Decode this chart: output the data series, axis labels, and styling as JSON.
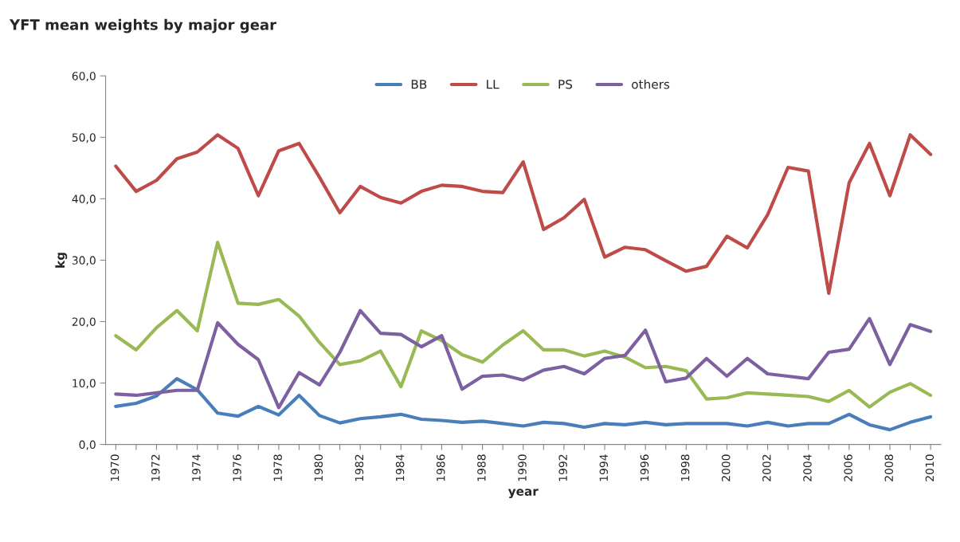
{
  "chart_data": {
    "type": "line",
    "title": "YFT mean weights by major gear",
    "xlabel": "year",
    "ylabel": "kg",
    "categories": [
      "1970",
      null,
      "1972",
      null,
      "1974",
      null,
      "1976",
      null,
      "1978",
      null,
      "1980",
      null,
      "1982",
      null,
      "1984",
      null,
      "1986",
      null,
      "1988",
      null,
      "1990",
      null,
      "1992",
      null,
      "1994",
      null,
      "1996",
      null,
      "1998",
      null,
      "2000",
      null,
      "2002",
      null,
      "2004",
      null,
      "2006",
      null,
      "2008",
      null,
      "2010"
    ],
    "series": [
      {
        "name": "BB",
        "color": "#4a7ebb",
        "values": [
          6.2,
          6.7,
          7.9,
          10.7,
          8.9,
          5.1,
          4.6,
          6.2,
          4.8,
          8.0,
          4.7,
          3.5,
          4.2,
          4.5,
          4.9,
          4.1,
          3.9,
          3.6,
          3.8,
          3.4,
          3.0,
          3.6,
          3.4,
          2.8,
          3.4,
          3.2,
          3.6,
          3.2,
          3.4,
          3.4,
          3.4,
          3.0,
          3.6,
          3.0,
          3.4,
          3.4,
          4.9,
          3.2,
          2.4,
          3.6,
          4.5
        ]
      },
      {
        "name": "LL",
        "color": "#be4b48",
        "values": [
          45.3,
          41.2,
          43.0,
          46.5,
          47.6,
          50.4,
          48.2,
          40.5,
          47.8,
          49.0,
          43.5,
          37.7,
          42.0,
          40.2,
          39.3,
          41.2,
          42.2,
          42.0,
          41.2,
          41.0,
          46.0,
          35.0,
          36.9,
          39.9,
          30.5,
          32.1,
          31.7,
          29.9,
          28.2,
          29.0,
          33.9,
          32.0,
          37.4,
          45.1,
          44.5,
          24.6,
          42.6,
          49.0,
          40.5,
          50.4,
          47.2
        ]
      },
      {
        "name": "PS",
        "color": "#98b954",
        "values": [
          17.7,
          15.4,
          19.0,
          21.8,
          18.5,
          32.9,
          23.0,
          22.8,
          23.6,
          20.9,
          16.6,
          13.0,
          13.6,
          15.2,
          9.4,
          18.5,
          16.9,
          14.6,
          13.4,
          16.2,
          18.5,
          15.4,
          15.4,
          14.4,
          15.2,
          14.2,
          12.5,
          12.7,
          12.0,
          7.4,
          7.6,
          8.4,
          8.2,
          8.0,
          7.8,
          7.0,
          8.8,
          6.1,
          8.5,
          9.9,
          8.0
        ]
      },
      {
        "name": "others",
        "color": "#7d60a0",
        "values": [
          8.2,
          8.0,
          8.4,
          8.8,
          8.8,
          19.8,
          16.3,
          13.8,
          6.0,
          11.7,
          9.7,
          15.0,
          21.8,
          18.1,
          17.9,
          15.9,
          17.7,
          9.0,
          11.1,
          11.3,
          10.5,
          12.1,
          12.7,
          11.5,
          14.0,
          14.5,
          18.6,
          10.2,
          10.8,
          14.0,
          11.1,
          14.0,
          11.5,
          11.1,
          10.7,
          15.0,
          15.5,
          20.5,
          13.0,
          19.5,
          18.4
        ]
      }
    ],
    "ylim": [
      0,
      60
    ],
    "yticks": [
      {
        "value": 0,
        "label": "0,0"
      },
      {
        "value": 10,
        "label": "10,0"
      },
      {
        "value": 20,
        "label": "20,0"
      },
      {
        "value": 30,
        "label": "30,0"
      },
      {
        "value": 40,
        "label": "40,0"
      },
      {
        "value": 50,
        "label": "50,0"
      },
      {
        "value": 60,
        "label": "60,0"
      }
    ],
    "grid": false,
    "legend": "top",
    "line_style": "solid",
    "marker": "none"
  }
}
